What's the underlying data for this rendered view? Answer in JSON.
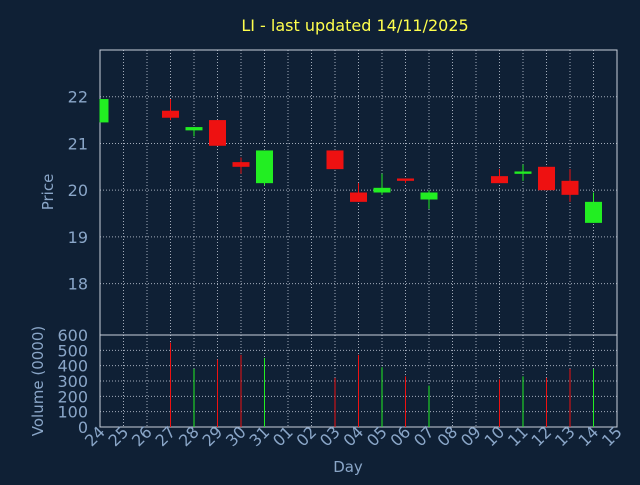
{
  "colors": {
    "background": "#0f2035",
    "plot_border": "#c8d0dc",
    "grid": "#c8d0dc",
    "title": "#ffff4d",
    "axis_text": "#8aa6c8",
    "up": "#22ee22",
    "down": "#ee1111"
  },
  "chart_data": [
    {
      "type": "candlestick",
      "title": "LI - last updated 14/11/2025",
      "ylabel": "Price",
      "ylim": [
        16.9,
        23.0
      ],
      "yticks": [
        18,
        19,
        20,
        21,
        22
      ],
      "grid": true,
      "x": [
        "24",
        "25",
        "26",
        "27",
        "28",
        "29",
        "30",
        "31",
        "01",
        "02",
        "03",
        "04",
        "05",
        "06",
        "07",
        "08",
        "09",
        "10",
        "11",
        "12",
        "13",
        "14",
        "15"
      ],
      "candles": [
        {
          "day": "24",
          "open": 21.45,
          "high": 21.95,
          "low": 21.45,
          "close": 21.95
        },
        {
          "day": "27",
          "open": 21.7,
          "high": 21.95,
          "low": 21.5,
          "close": 21.55
        },
        {
          "day": "28",
          "open": 21.28,
          "high": 21.35,
          "low": 21.15,
          "close": 21.35
        },
        {
          "day": "29",
          "open": 21.5,
          "high": 21.5,
          "low": 20.95,
          "close": 20.95
        },
        {
          "day": "30",
          "open": 20.6,
          "high": 20.7,
          "low": 20.35,
          "close": 20.5
        },
        {
          "day": "31",
          "open": 20.15,
          "high": 20.85,
          "low": 20.1,
          "close": 20.85
        },
        {
          "day": "03",
          "open": 20.85,
          "high": 20.85,
          "low": 20.45,
          "close": 20.45
        },
        {
          "day": "04",
          "open": 19.95,
          "high": 20.15,
          "low": 19.75,
          "close": 19.75
        },
        {
          "day": "05",
          "open": 19.95,
          "high": 20.35,
          "low": 19.9,
          "close": 20.05
        },
        {
          "day": "06",
          "open": 20.25,
          "high": 20.25,
          "low": 20.15,
          "close": 20.2
        },
        {
          "day": "07",
          "open": 19.8,
          "high": 20.0,
          "low": 19.6,
          "close": 19.95
        },
        {
          "day": "10",
          "open": 20.3,
          "high": 20.45,
          "low": 20.15,
          "close": 20.15
        },
        {
          "day": "11",
          "open": 20.35,
          "high": 20.55,
          "low": 20.2,
          "close": 20.4
        },
        {
          "day": "12",
          "open": 20.5,
          "high": 20.5,
          "low": 20.0,
          "close": 20.0
        },
        {
          "day": "13",
          "open": 20.2,
          "high": 20.45,
          "low": 19.75,
          "close": 19.9
        },
        {
          "day": "14",
          "open": 19.3,
          "high": 19.95,
          "low": 19.3,
          "close": 19.75
        }
      ]
    },
    {
      "type": "bar",
      "ylabel": "Volume (0000)",
      "xlabel": "Day",
      "ylim": [
        0,
        600
      ],
      "yticks": [
        0,
        100,
        200,
        300,
        400,
        500,
        600
      ],
      "grid": true,
      "x": [
        "24",
        "25",
        "26",
        "27",
        "28",
        "29",
        "30",
        "31",
        "01",
        "02",
        "03",
        "04",
        "05",
        "06",
        "07",
        "08",
        "09",
        "10",
        "11",
        "12",
        "13",
        "14",
        "15"
      ],
      "bars": [
        {
          "day": "27",
          "value": 550,
          "dir": "down"
        },
        {
          "day": "28",
          "value": 380,
          "dir": "up"
        },
        {
          "day": "29",
          "value": 440,
          "dir": "down"
        },
        {
          "day": "30",
          "value": 470,
          "dir": "down"
        },
        {
          "day": "31",
          "value": 450,
          "dir": "up"
        },
        {
          "day": "03",
          "value": 320,
          "dir": "down"
        },
        {
          "day": "04",
          "value": 470,
          "dir": "down"
        },
        {
          "day": "05",
          "value": 390,
          "dir": "up"
        },
        {
          "day": "06",
          "value": 330,
          "dir": "down"
        },
        {
          "day": "07",
          "value": 270,
          "dir": "up"
        },
        {
          "day": "10",
          "value": 310,
          "dir": "down"
        },
        {
          "day": "11",
          "value": 330,
          "dir": "up"
        },
        {
          "day": "12",
          "value": 320,
          "dir": "down"
        },
        {
          "day": "13",
          "value": 380,
          "dir": "down"
        },
        {
          "day": "14",
          "value": 380,
          "dir": "up"
        }
      ]
    }
  ]
}
